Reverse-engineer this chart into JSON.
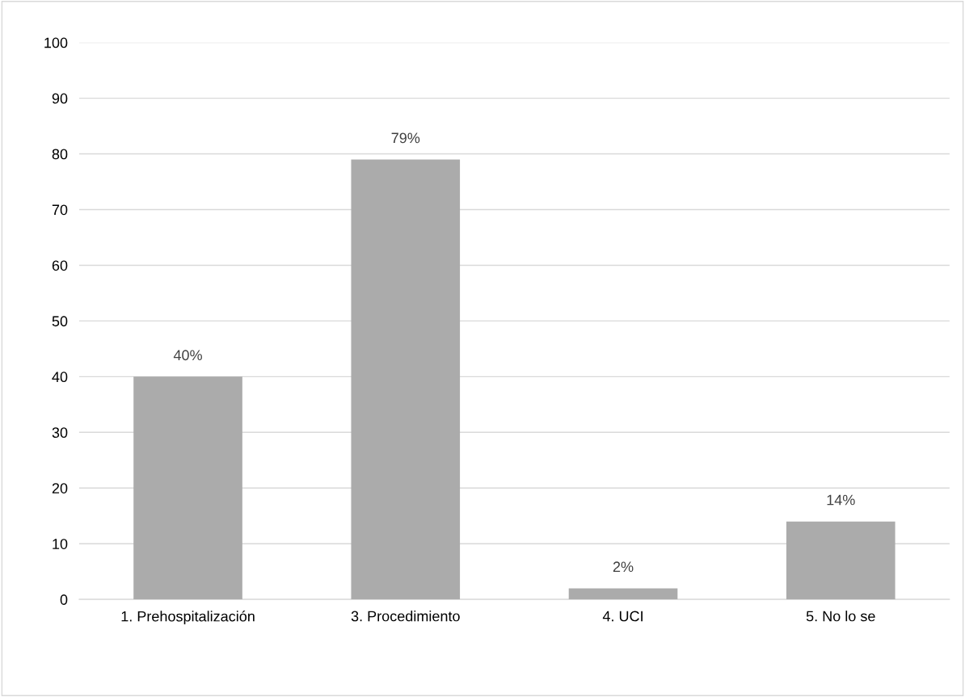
{
  "chart_data": {
    "type": "bar",
    "categories": [
      "1. Prehospitalización",
      "3. Procedimiento",
      "4. UCI",
      "5. No lo se"
    ],
    "values": [
      40,
      79,
      2,
      14
    ],
    "value_labels": [
      "40%",
      "79%",
      "2%",
      "14%"
    ],
    "color": "#ababab",
    "ylim": [
      0,
      100
    ],
    "yticks": [
      0,
      10,
      20,
      30,
      40,
      50,
      60,
      70,
      80,
      90,
      100
    ],
    "grid": "y"
  }
}
